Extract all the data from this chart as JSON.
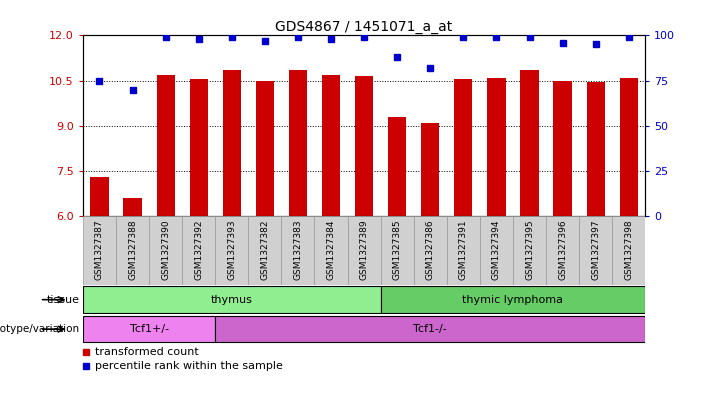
{
  "title": "GDS4867 / 1451071_a_at",
  "samples": [
    "GSM1327387",
    "GSM1327388",
    "GSM1327390",
    "GSM1327392",
    "GSM1327393",
    "GSM1327382",
    "GSM1327383",
    "GSM1327384",
    "GSM1327389",
    "GSM1327385",
    "GSM1327386",
    "GSM1327391",
    "GSM1327394",
    "GSM1327395",
    "GSM1327396",
    "GSM1327397",
    "GSM1327398"
  ],
  "bar_values": [
    7.3,
    6.6,
    10.7,
    10.55,
    10.85,
    10.5,
    10.85,
    10.7,
    10.65,
    9.3,
    9.1,
    10.55,
    10.6,
    10.85,
    10.5,
    10.45,
    10.6
  ],
  "dot_values": [
    75,
    70,
    99,
    98,
    99,
    97,
    99,
    98,
    99,
    88,
    82,
    99,
    99,
    99,
    96,
    95,
    99
  ],
  "ylim_left": [
    6,
    12
  ],
  "ylim_right": [
    0,
    100
  ],
  "yticks_left": [
    6,
    7.5,
    9,
    10.5,
    12
  ],
  "yticks_right": [
    0,
    25,
    50,
    75,
    100
  ],
  "bar_color": "#cc0000",
  "dot_color": "#0000cc",
  "tissue_groups": [
    {
      "label": "thymus",
      "start": 0,
      "end": 9,
      "color": "#90EE90"
    },
    {
      "label": "thymic lymphoma",
      "start": 9,
      "end": 17,
      "color": "#66cc66"
    }
  ],
  "genotype_groups": [
    {
      "label": "Tcf1+/-",
      "start": 0,
      "end": 4,
      "color": "#ee82ee"
    },
    {
      "label": "Tcf1-/-",
      "start": 4,
      "end": 17,
      "color": "#cc66cc"
    }
  ],
  "legend_items": [
    {
      "label": "transformed count",
      "color": "#cc0000"
    },
    {
      "label": "percentile rank within the sample",
      "color": "#0000cc"
    }
  ],
  "label_tissue": "tissue",
  "label_genotype": "genotype/variation",
  "background_color": "#ffffff",
  "tick_label_color_left": "#cc0000",
  "tick_label_color_right": "#0000cc",
  "sample_bg": "#d0d0d0",
  "dotted_lines": [
    7.5,
    9,
    10.5
  ]
}
